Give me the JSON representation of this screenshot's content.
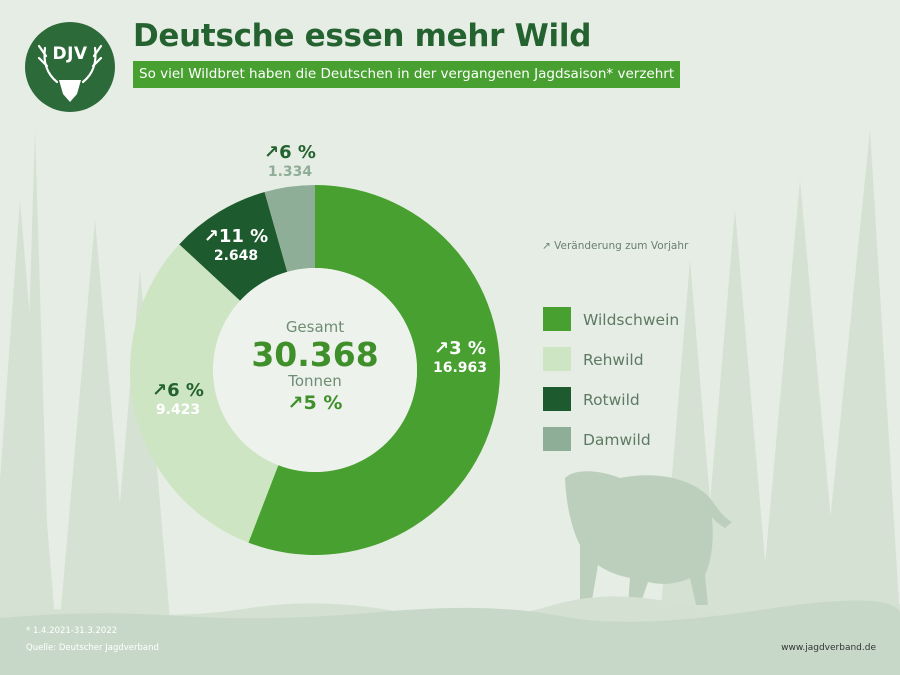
{
  "logo": {
    "text": "DJV"
  },
  "header": {
    "title": "Deutsche essen mehr Wild",
    "subtitle": "So viel Wildbret haben die Deutschen in der vergangenen Jagdsaison* verzehrt"
  },
  "center": {
    "label": "Gesamt",
    "total": "30.368",
    "unit": "Tonnen",
    "change": "↗5 %"
  },
  "change_note": "↗ Veränderung zum Vorjahr",
  "footer": {
    "footnote": "* 1.4.2021-31.3.2022",
    "source": "Quelle: Deutscher Jagdverband",
    "url": "www.jagdverband.de"
  },
  "colors": {
    "wildschwein": "#47a02f",
    "rehwild": "#cde5c2",
    "rotwild": "#1d5a2d",
    "damwild": "#8fae98",
    "brand_dark": "#24622f"
  },
  "chart_data": {
    "type": "pie",
    "variant": "donut",
    "unit": "Tonnen",
    "total": 30368,
    "total_change": "↗5 %",
    "legend_position": "right",
    "slices": [
      {
        "name": "Wildschwein",
        "value": 16963,
        "value_label": "16.963",
        "change": "↗3 %",
        "color": "#47a02f",
        "label_color": "#ffffff",
        "change_color": "#ffffff"
      },
      {
        "name": "Rehwild",
        "value": 9423,
        "value_label": "9.423",
        "change": "↗6 %",
        "color": "#cde5c2",
        "label_color": "#ffffff",
        "change_color": "#24622f"
      },
      {
        "name": "Rotwild",
        "value": 2648,
        "value_label": "2.648",
        "change": "↗11 %",
        "color": "#1d5a2d",
        "label_color": "#ffffff",
        "change_color": "#ffffff"
      },
      {
        "name": "Damwild",
        "value": 1334,
        "value_label": "1.334",
        "change": "↗6 %",
        "color": "#8fae98",
        "label_color": "#8fae98",
        "change_color": "#24622f"
      }
    ]
  }
}
